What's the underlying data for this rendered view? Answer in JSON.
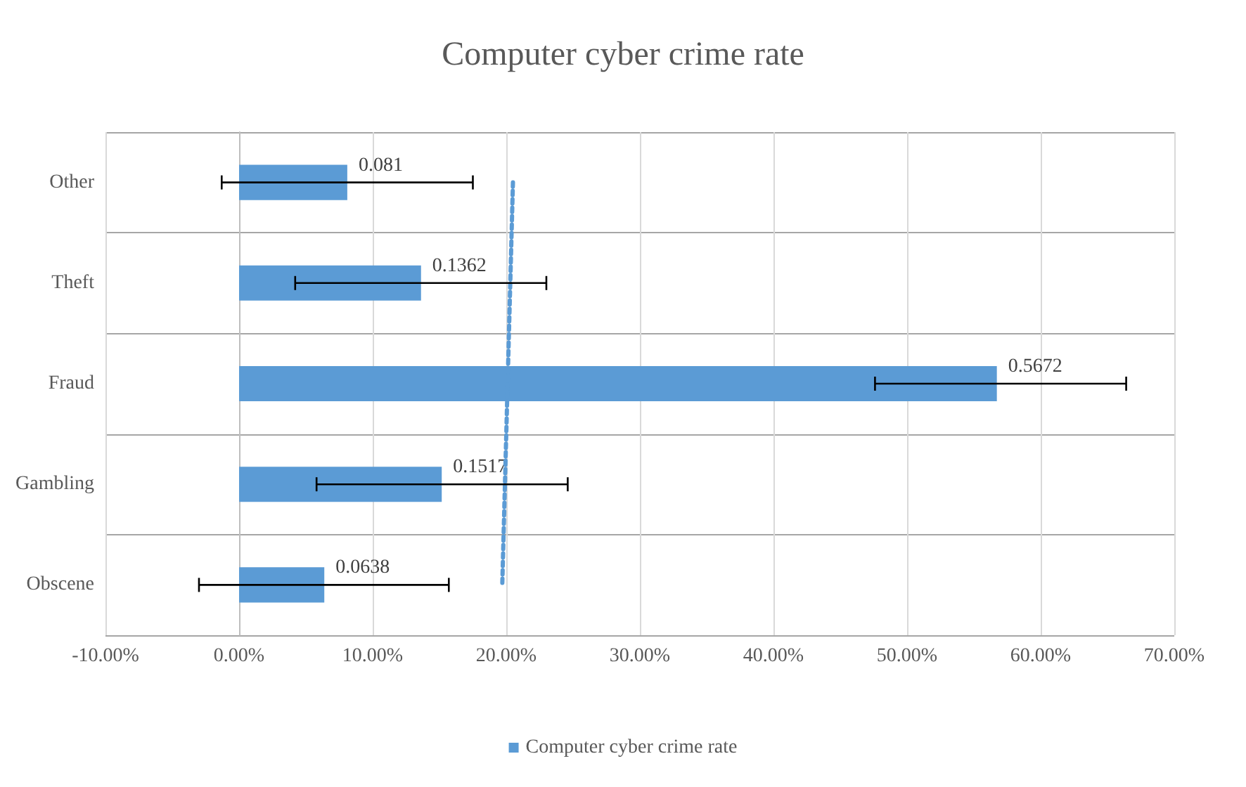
{
  "chart_data": {
    "type": "bar",
    "orientation": "horizontal",
    "title": "Computer cyber crime rate",
    "categories": [
      "Other",
      "Theft",
      "Fraud",
      "Gambling",
      "Obscene"
    ],
    "series": [
      {
        "name": "Computer cyber crime rate",
        "color": "#5b9bd5",
        "values": [
          0.081,
          0.1362,
          0.5672,
          0.1517,
          0.0638
        ],
        "value_labels": [
          "0.081",
          "0.1362",
          "0.5672",
          "0.1517",
          "0.0638"
        ],
        "errors": [
          [
            -0.013,
            0.175
          ],
          [
            0.042,
            0.23
          ],
          [
            0.476,
            0.664
          ],
          [
            0.058,
            0.246
          ],
          [
            -0.03,
            0.157
          ]
        ]
      },
      {
        "type": "line",
        "color": "#5b9bd5",
        "line_style": "dotted",
        "marker": "none",
        "values": [
          0.205,
          0.203,
          0.201,
          0.199,
          0.197
        ]
      }
    ],
    "xlim": [
      -0.1,
      0.7
    ],
    "xticks": [
      {
        "value": -0.1,
        "label": "-10.00%"
      },
      {
        "value": 0,
        "label": "0.00%"
      },
      {
        "value": 0.1,
        "label": "10.00%"
      },
      {
        "value": 0.2,
        "label": "20.00%"
      },
      {
        "value": 0.3,
        "label": "30.00%"
      },
      {
        "value": 0.4,
        "label": "40.00%"
      },
      {
        "value": 0.5,
        "label": "50.00%"
      },
      {
        "value": 0.6,
        "label": "60.00%"
      },
      {
        "value": 0.7,
        "label": "70.00%"
      }
    ],
    "grid": true,
    "legend": "bottom"
  }
}
